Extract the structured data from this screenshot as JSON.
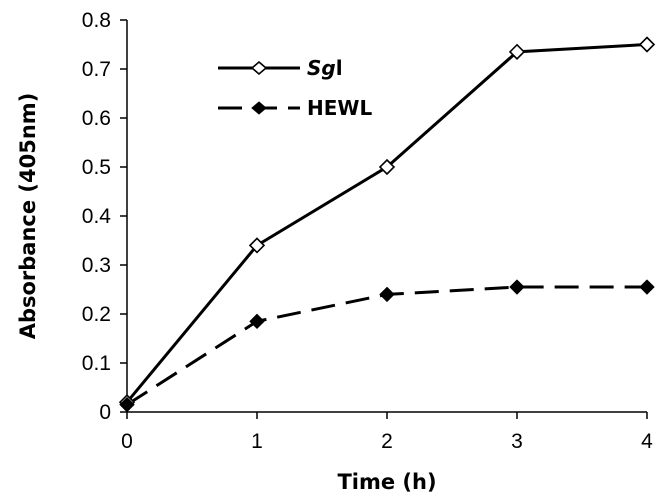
{
  "chart_data": {
    "type": "line",
    "xlabel": "Time (h)",
    "ylabel": "Absorbance (405nm)",
    "x": [
      0,
      1,
      2,
      3,
      4
    ],
    "xlim": [
      0,
      4
    ],
    "ylim": [
      0,
      0.8
    ],
    "x_ticks": [
      "0",
      "1",
      "2",
      "3",
      "4"
    ],
    "y_ticks": [
      "0",
      "0.1",
      "0.2",
      "0.3",
      "0.4",
      "0.5",
      "0.6",
      "0.7",
      "0.8"
    ],
    "grid": false,
    "legend_position": "top-left",
    "series": [
      {
        "name_italic": "Sg",
        "name_rest": "l",
        "values": [
          0.02,
          0.34,
          0.5,
          0.735,
          0.75
        ],
        "marker": "open-diamond",
        "line_style": "solid",
        "color": "#000000"
      },
      {
        "name": "HEWL",
        "values": [
          0.015,
          0.185,
          0.24,
          0.255,
          0.255
        ],
        "marker": "filled-diamond",
        "line_style": "dashed",
        "color": "#000000"
      }
    ]
  }
}
